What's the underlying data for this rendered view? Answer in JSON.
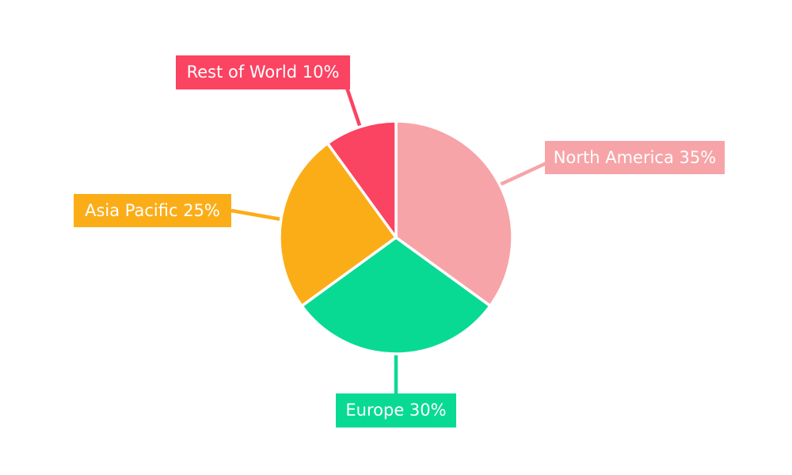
{
  "chart_data": {
    "type": "pie",
    "title": "",
    "start_angle_deg": 0,
    "direction": "clockwise",
    "legend_position": "none",
    "background": "#FFFFFF",
    "label_text_color": "#FFFFFF",
    "slices": [
      {
        "label": "North America",
        "value": 35,
        "unit": "%",
        "display": "North America 35%",
        "color": "#F7A4A8"
      },
      {
        "label": "Europe",
        "value": 30,
        "unit": "%",
        "display": "Europe 30%",
        "color": "#09DA93"
      },
      {
        "label": "Asia Pacific",
        "value": 25,
        "unit": "%",
        "display": "Asia Pacific 25%",
        "color": "#FBAD18"
      },
      {
        "label": "Rest of World",
        "value": 10,
        "unit": "%",
        "display": "Rest of World 10%",
        "color": "#FB4362"
      }
    ]
  }
}
